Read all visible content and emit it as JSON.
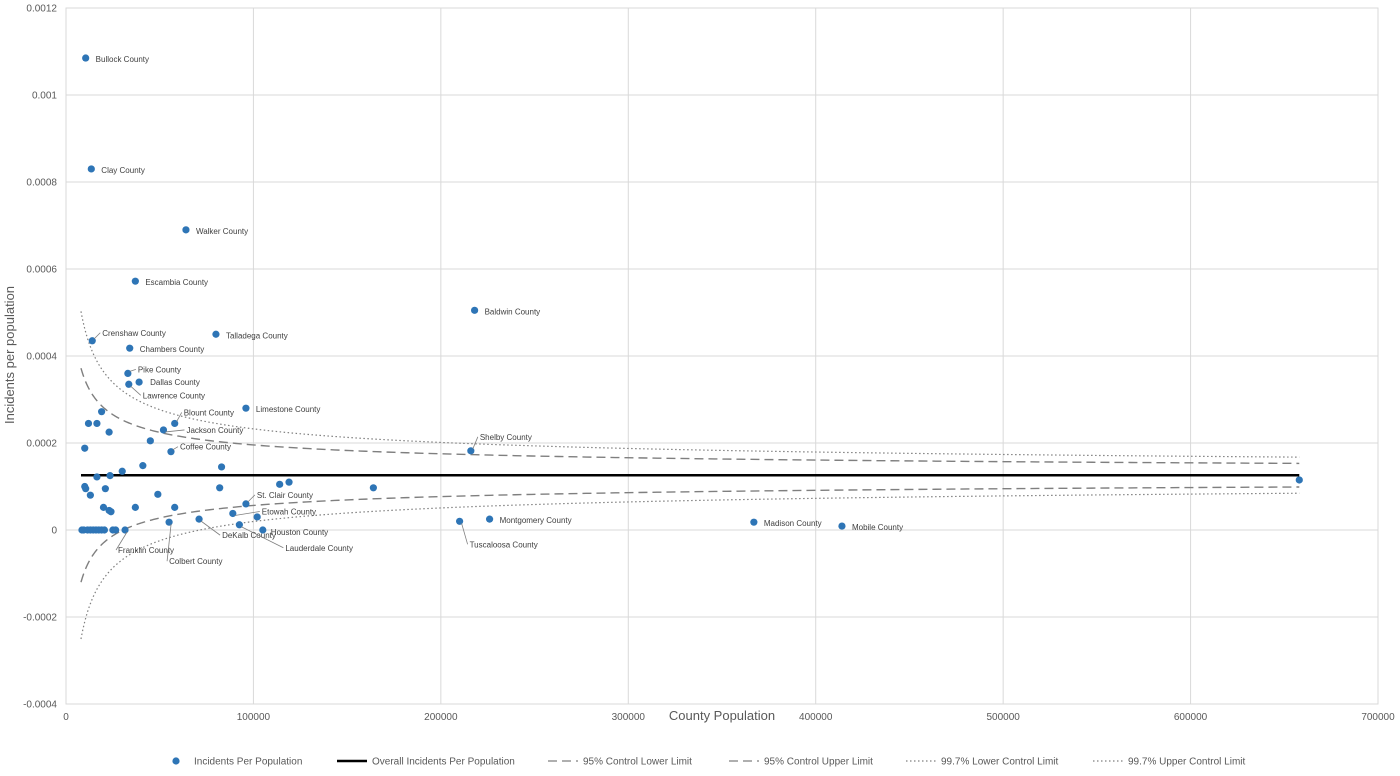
{
  "chart_data": {
    "type": "scatter",
    "title": "",
    "xlabel": "County Population",
    "ylabel": "Incidents per population",
    "xlim": [
      0,
      700000
    ],
    "ylim": [
      -0.0004,
      0.0012
    ],
    "x_ticks": [
      "0",
      "100000",
      "200000",
      "300000",
      "400000",
      "500000",
      "600000",
      "700000"
    ],
    "y_ticks": [
      "0.0012",
      "0.001",
      "0.0008",
      "0.0006",
      "0.0004",
      "0.0002",
      "0",
      "-0.0002",
      "-0.0004"
    ],
    "grid": true,
    "legend_position": "bottom",
    "colors": {
      "points": "#2E75B6",
      "mean_line": "#000000",
      "limits": "#7F7F7F",
      "grid": "#D9D9D9"
    },
    "series": [
      {
        "name": "Incidents Per Population",
        "kind": "scatter"
      },
      {
        "name": "Overall Incidents Per Population",
        "kind": "line",
        "style": "solid",
        "value": 0.000126
      },
      {
        "name": "95% Control Lower Limit",
        "kind": "line",
        "style": "dashed",
        "z": 1.96
      },
      {
        "name": "95% Control Upper Limit",
        "kind": "line",
        "style": "dashed",
        "z": 1.96
      },
      {
        "name": "99.7% Lower Control Limit",
        "kind": "line",
        "style": "dotted",
        "z": 3
      },
      {
        "name": "99.7% Upper Control Limit",
        "kind": "line",
        "style": "dotted",
        "z": 3
      }
    ],
    "control_x_range": [
      8000,
      658000
    ],
    "points": [
      {
        "label": "Bullock County",
        "x": 10500,
        "y": 0.001085
      },
      {
        "label": "Clay County",
        "x": 13500,
        "y": 0.00083
      },
      {
        "label": "Walker County",
        "x": 64000,
        "y": 0.00069
      },
      {
        "label": "Escambia County",
        "x": 37000,
        "y": 0.000572
      },
      {
        "label": "Baldwin County",
        "x": 218000,
        "y": 0.000505
      },
      {
        "label": "Crenshaw County",
        "x": 14000,
        "y": 0.000435
      },
      {
        "label": "Talladega County",
        "x": 80000,
        "y": 0.00045
      },
      {
        "label": "Chambers County",
        "x": 34000,
        "y": 0.000418
      },
      {
        "label": "Pike County",
        "x": 33000,
        "y": 0.00036
      },
      {
        "label": "Dallas County",
        "x": 39000,
        "y": 0.00034
      },
      {
        "label": "Lawrence County",
        "x": 33500,
        "y": 0.000335
      },
      {
        "label": "Limestone County",
        "x": 96000,
        "y": 0.00028
      },
      {
        "label": "Blount County",
        "x": 58000,
        "y": 0.000245
      },
      {
        "label": "Jackson County",
        "x": 52000,
        "y": 0.00023
      },
      {
        "label": "Coffee County",
        "x": 56000,
        "y": 0.00018
      },
      {
        "label": "Shelby County",
        "x": 216000,
        "y": 0.000182
      },
      {
        "label": "St. Clair County",
        "x": 96000,
        "y": 6e-05
      },
      {
        "label": "Etowah County",
        "x": 89000,
        "y": 3.8e-05
      },
      {
        "label": "Montgomery County",
        "x": 226000,
        "y": 2.5e-05
      },
      {
        "label": "Madison County",
        "x": 367000,
        "y": 1.8e-05
      },
      {
        "label": "Mobile County",
        "x": 414000,
        "y": 9e-06
      },
      {
        "label": "Tuscaloosa County",
        "x": 210000,
        "y": 2e-05
      },
      {
        "label": "DeKalb County",
        "x": 71000,
        "y": 2.5e-05
      },
      {
        "label": "Houston County",
        "x": 105000,
        "y": 0.0
      },
      {
        "label": "Lauderdale County",
        "x": 92500,
        "y": 1.2e-05
      },
      {
        "label": "Franklin County",
        "x": 31500,
        "y": 0.0
      },
      {
        "label": "Colbert County",
        "x": 55000,
        "y": 1.8e-05
      },
      {
        "label": "",
        "x": 10000,
        "y": 0.000188
      },
      {
        "label": "",
        "x": 12000,
        "y": 0.000245
      },
      {
        "label": "",
        "x": 16500,
        "y": 0.000245
      },
      {
        "label": "",
        "x": 19000,
        "y": 0.000272
      },
      {
        "label": "",
        "x": 23000,
        "y": 0.000225
      },
      {
        "label": "",
        "x": 45000,
        "y": 0.000205
      },
      {
        "label": "",
        "x": 41000,
        "y": 0.000148
      },
      {
        "label": "",
        "x": 83000,
        "y": 0.000145
      },
      {
        "label": "",
        "x": 30000,
        "y": 0.000135
      },
      {
        "label": "",
        "x": 23500,
        "y": 0.000125
      },
      {
        "label": "",
        "x": 16500,
        "y": 0.000122
      },
      {
        "label": "",
        "x": 10000,
        "y": 0.0001
      },
      {
        "label": "",
        "x": 10500,
        "y": 9.5e-05
      },
      {
        "label": "",
        "x": 21000,
        "y": 9.5e-05
      },
      {
        "label": "",
        "x": 13000,
        "y": 8e-05
      },
      {
        "label": "",
        "x": 49000,
        "y": 8.2e-05
      },
      {
        "label": "",
        "x": 82000,
        "y": 9.7e-05
      },
      {
        "label": "",
        "x": 114000,
        "y": 0.000105
      },
      {
        "label": "",
        "x": 119000,
        "y": 0.00011
      },
      {
        "label": "",
        "x": 164000,
        "y": 9.7e-05
      },
      {
        "label": "",
        "x": 20000,
        "y": 5.2e-05
      },
      {
        "label": "",
        "x": 23000,
        "y": 4.5e-05
      },
      {
        "label": "",
        "x": 24000,
        "y": 4.2e-05
      },
      {
        "label": "",
        "x": 37000,
        "y": 5.2e-05
      },
      {
        "label": "",
        "x": 58000,
        "y": 5.2e-05
      },
      {
        "label": "",
        "x": 102000,
        "y": 3e-05
      },
      {
        "label": "",
        "x": 8500,
        "y": 0.0
      },
      {
        "label": "",
        "x": 9500,
        "y": 0.0
      },
      {
        "label": "",
        "x": 11500,
        "y": 0.0
      },
      {
        "label": "",
        "x": 13000,
        "y": 0.0
      },
      {
        "label": "",
        "x": 14500,
        "y": 0.0
      },
      {
        "label": "",
        "x": 16000,
        "y": 0.0
      },
      {
        "label": "",
        "x": 17500,
        "y": 0.0
      },
      {
        "label": "",
        "x": 19000,
        "y": 0.0
      },
      {
        "label": "",
        "x": 20500,
        "y": 0.0
      },
      {
        "label": "",
        "x": 25000,
        "y": 0.0
      },
      {
        "label": "",
        "x": 26500,
        "y": 0.0
      },
      {
        "label": "",
        "x": 658000,
        "y": 0.000115
      }
    ]
  }
}
